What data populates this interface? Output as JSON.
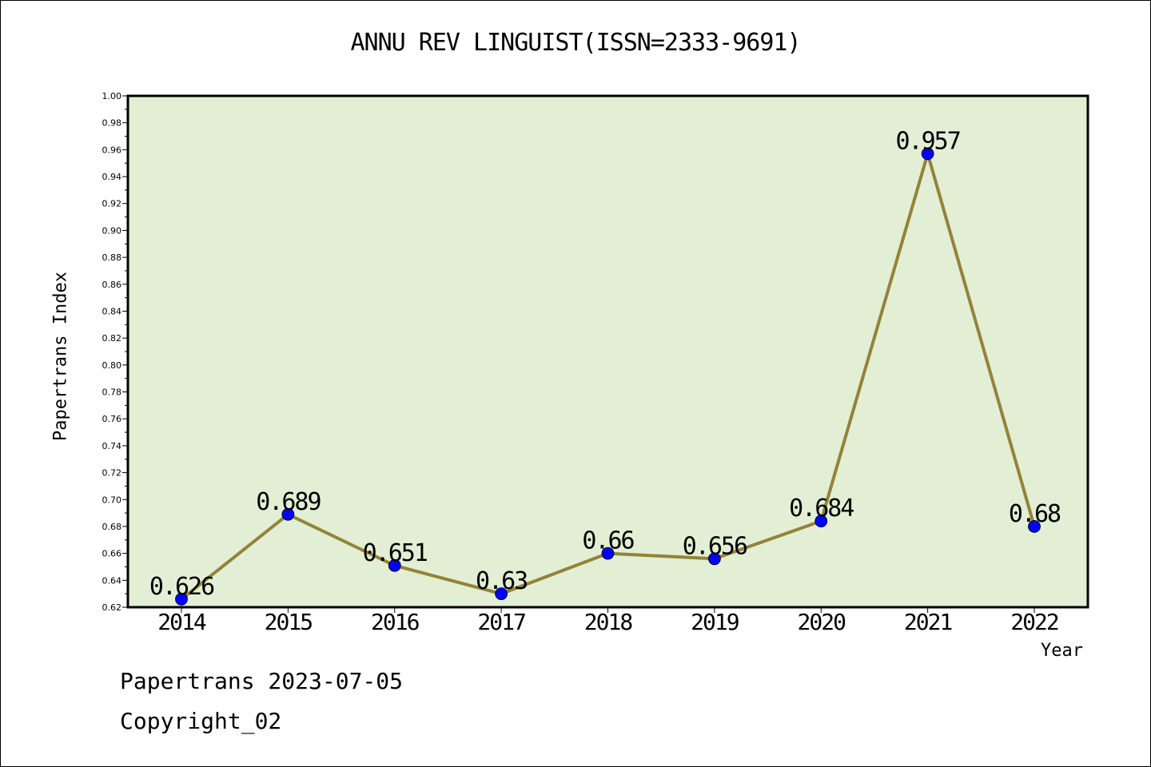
{
  "chart_data": {
    "type": "line",
    "title": "ANNU REV LINGUIST(ISSN=2333-9691)",
    "xlabel": "Year",
    "ylabel": "Papertrans Index",
    "categories": [
      "2014",
      "2015",
      "2016",
      "2017",
      "2018",
      "2019",
      "2020",
      "2021",
      "2022"
    ],
    "values": [
      0.626,
      0.689,
      0.651,
      0.63,
      0.66,
      0.656,
      0.684,
      0.957,
      0.68
    ],
    "data_labels": [
      "0.626",
      "0.689",
      "0.651",
      "0.63",
      "0.66",
      "0.656",
      "0.684",
      "0.957",
      "0.68"
    ],
    "ylim": [
      0.62,
      1.0
    ],
    "yticks": [
      "0.62",
      "0.64",
      "0.66",
      "0.68",
      "0.70",
      "0.72",
      "0.74",
      "0.76",
      "0.78",
      "0.80",
      "0.82",
      "0.84",
      "0.86",
      "0.88",
      "0.90",
      "0.92",
      "0.94",
      "0.96",
      "0.98",
      "1.00"
    ],
    "grid": false,
    "colors": {
      "plot_background": "#e2efd5",
      "line": "#948338",
      "marker": "#0000ff"
    }
  },
  "footer": {
    "date": "Papertrans 2023-07-05",
    "copyright": "Copyright_02"
  }
}
